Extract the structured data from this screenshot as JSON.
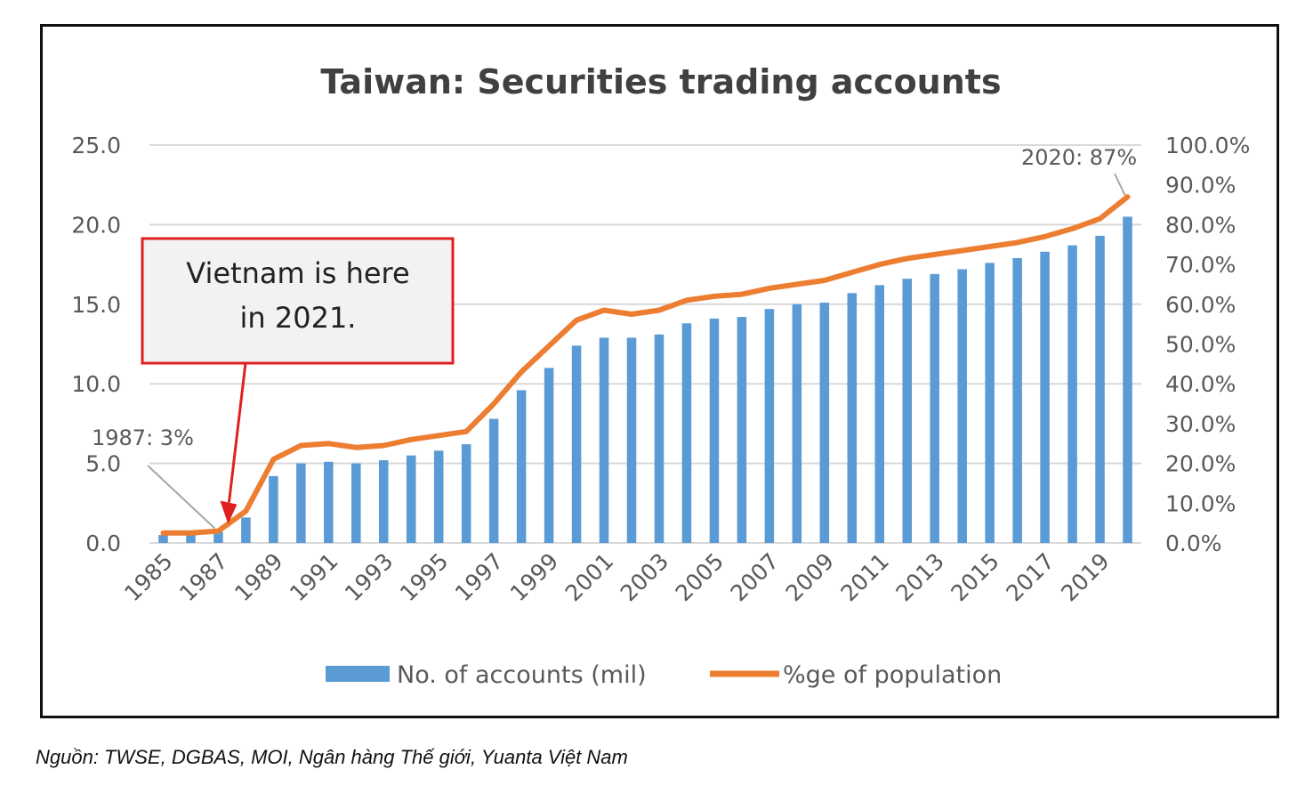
{
  "chart_data": {
    "type": "bar+line",
    "title": "Taiwan: Securities trading accounts",
    "categories": [
      1985,
      1986,
      1987,
      1988,
      1989,
      1990,
      1991,
      1992,
      1993,
      1994,
      1995,
      1996,
      1997,
      1998,
      1999,
      2000,
      2001,
      2002,
      2003,
      2004,
      2005,
      2006,
      2007,
      2008,
      2009,
      2010,
      2011,
      2012,
      2013,
      2014,
      2015,
      2016,
      2017,
      2018,
      2019,
      2020
    ],
    "x_tick_labels": [
      "1985",
      "1987",
      "1989",
      "1991",
      "1993",
      "1995",
      "1997",
      "1999",
      "2001",
      "2003",
      "2005",
      "2007",
      "2009",
      "2011",
      "2013",
      "2015",
      "2017",
      "2019"
    ],
    "series": [
      {
        "name": "No. of accounts (mil)",
        "kind": "bar",
        "axis": "left",
        "color": "#5B9BD5",
        "values": [
          0.5,
          0.5,
          0.7,
          1.6,
          4.2,
          5.0,
          5.1,
          5.0,
          5.2,
          5.5,
          5.8,
          6.2,
          7.8,
          9.6,
          11.0,
          12.4,
          12.9,
          12.9,
          13.1,
          13.8,
          14.1,
          14.2,
          14.7,
          15.0,
          15.1,
          15.7,
          16.2,
          16.6,
          16.9,
          17.2,
          17.6,
          17.9,
          18.3,
          18.7,
          19.3,
          20.5
        ]
      },
      {
        "name": "%ge of population",
        "kind": "line",
        "axis": "right",
        "color": "#ED7D31",
        "values": [
          2.5,
          2.5,
          3.0,
          8.0,
          21.0,
          24.5,
          25.0,
          24.0,
          24.5,
          26.0,
          27.0,
          28.0,
          35.0,
          43.0,
          49.5,
          56.0,
          58.5,
          57.5,
          58.5,
          61.0,
          62.0,
          62.5,
          64.0,
          65.0,
          66.0,
          68.0,
          70.0,
          71.5,
          72.5,
          73.5,
          74.5,
          75.5,
          77.0,
          79.0,
          81.5,
          87.0
        ]
      }
    ],
    "y_left": {
      "range": [
        0,
        25
      ],
      "ticks": [
        "0.0",
        "5.0",
        "10.0",
        "15.0",
        "20.0",
        "25.0"
      ]
    },
    "y_right": {
      "range": [
        0,
        100
      ],
      "ticks": [
        "0.0%",
        "10.0%",
        "20.0%",
        "30.0%",
        "40.0%",
        "50.0%",
        "60.0%",
        "70.0%",
        "80.0%",
        "90.0%",
        "100.0%"
      ]
    },
    "grid": true,
    "legend_position": "bottom",
    "annotations": [
      {
        "text": "1987: 3%",
        "target_year": 1987
      },
      {
        "text": "2020: 87%",
        "target_year": 2020
      }
    ],
    "callout": {
      "lines": [
        "Vietnam is here",
        "in 2021."
      ],
      "target_year": 1987,
      "border_color": "#E02020"
    }
  },
  "source_note": "Nguồn: TWSE, DGBAS, MOI, Ngân hàng Thế giới, Yuanta Việt Nam"
}
